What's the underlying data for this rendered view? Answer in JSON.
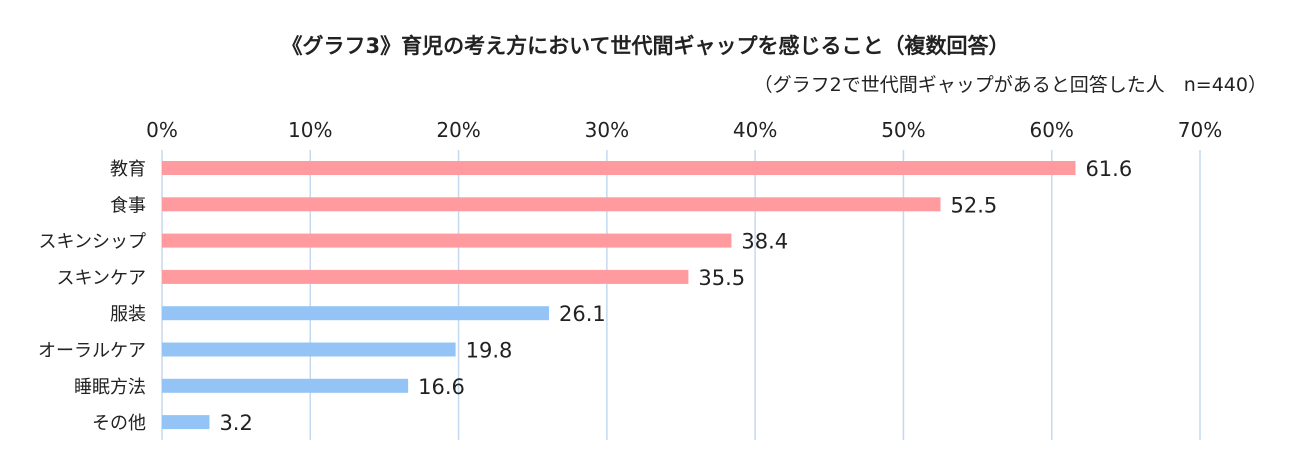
{
  "chart_data": {
    "type": "bar",
    "orientation": "horizontal",
    "title": "《グラフ3》育児の考え方において世代間ギャップを感じること（複数回答）",
    "subtitle": "（グラフ2で世代間ギャップがあると回答した人　n=440）",
    "categories": [
      "教育",
      "食事",
      "スキンシップ",
      "スキンケア",
      "服装",
      "オーラルケア",
      "睡眠方法",
      "その他"
    ],
    "values": [
      61.6,
      52.5,
      38.4,
      35.5,
      26.1,
      19.8,
      16.6,
      3.2
    ],
    "value_labels": [
      "61.6",
      "52.5",
      "38.4",
      "35.5",
      "26.1",
      "19.8",
      "16.6",
      "3.2"
    ],
    "bar_colors": [
      "#FF9A9E",
      "#FF9A9E",
      "#FF9A9E",
      "#FF9A9E",
      "#94C4F5",
      "#94C4F5",
      "#94C4F5",
      "#94C4F5"
    ],
    "xlim": [
      0,
      70
    ],
    "xticks": [
      "0%",
      "10%",
      "20%",
      "30%",
      "40%",
      "50%",
      "60%",
      "70%"
    ],
    "xtick_values": [
      0,
      10,
      20,
      30,
      40,
      50,
      60,
      70
    ],
    "grid": true,
    "xlabel": "",
    "ylabel": ""
  },
  "colors": {
    "grid": "#C5D9EE"
  }
}
